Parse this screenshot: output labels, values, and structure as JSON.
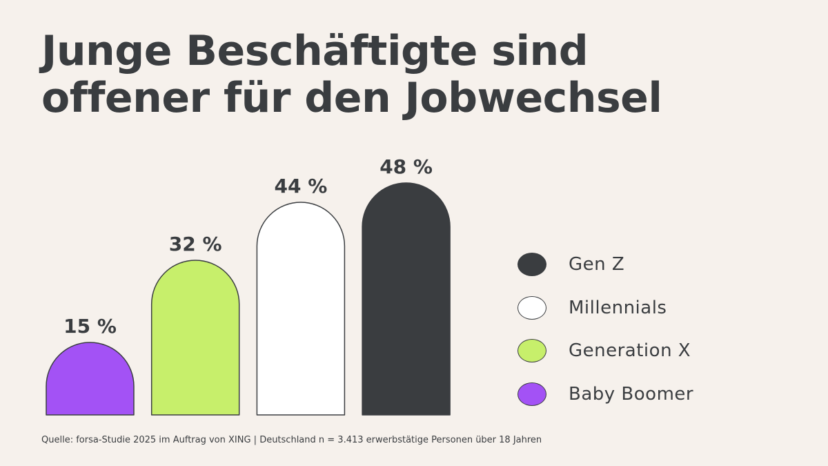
{
  "title": {
    "line1": "Junge Beschäftigte sind",
    "line2": "offener für den Jobwechsel"
  },
  "chart_data": {
    "type": "bar",
    "title": "Junge Beschäftigte sind offener für den Jobwechsel",
    "categories": [
      "Baby Boomer",
      "Generation X",
      "Millennials",
      "Gen Z"
    ],
    "values": [
      15,
      32,
      44,
      48
    ],
    "value_labels": [
      "15 %",
      "32 %",
      "44 %",
      "48 %"
    ],
    "colors": [
      "#a352f5",
      "#c7ef6b",
      "#ffffff",
      "#3a3d40"
    ],
    "xlabel": "",
    "ylabel": "",
    "grid": false,
    "legend_position": "right"
  },
  "legend": [
    {
      "label": "Gen Z",
      "color": "#3a3d40"
    },
    {
      "label": "Millennials",
      "color": "#ffffff"
    },
    {
      "label": "Generation X",
      "color": "#c7ef6b"
    },
    {
      "label": "Baby Boomer",
      "color": "#a352f5"
    }
  ],
  "source": "Quelle: forsa-Studie 2025 im Auftrag von XING | Deutschland n = 3.413 erwerbstätige Personen über 18 Jahren"
}
